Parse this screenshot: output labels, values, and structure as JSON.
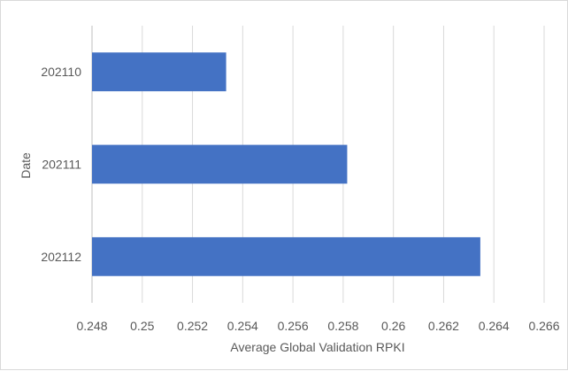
{
  "chart_data": {
    "type": "bar",
    "orientation": "horizontal",
    "categories": [
      "202110",
      "202111",
      "202112"
    ],
    "values": [
      0.25334,
      0.25816,
      0.26346
    ],
    "xlabel": "Average Global Validation RPKI",
    "ylabel": "Date",
    "xlim": [
      0.248,
      0.266
    ],
    "x_ticks": [
      "0.248",
      "0.25",
      "0.252",
      "0.254",
      "0.256",
      "0.258",
      "0.26",
      "0.262",
      "0.264",
      "0.266"
    ],
    "grid": true,
    "legend": "none",
    "bar_color": "#4472c4",
    "grid_color": "#d9d9d9",
    "axis_color": "#bfbfbf"
  }
}
